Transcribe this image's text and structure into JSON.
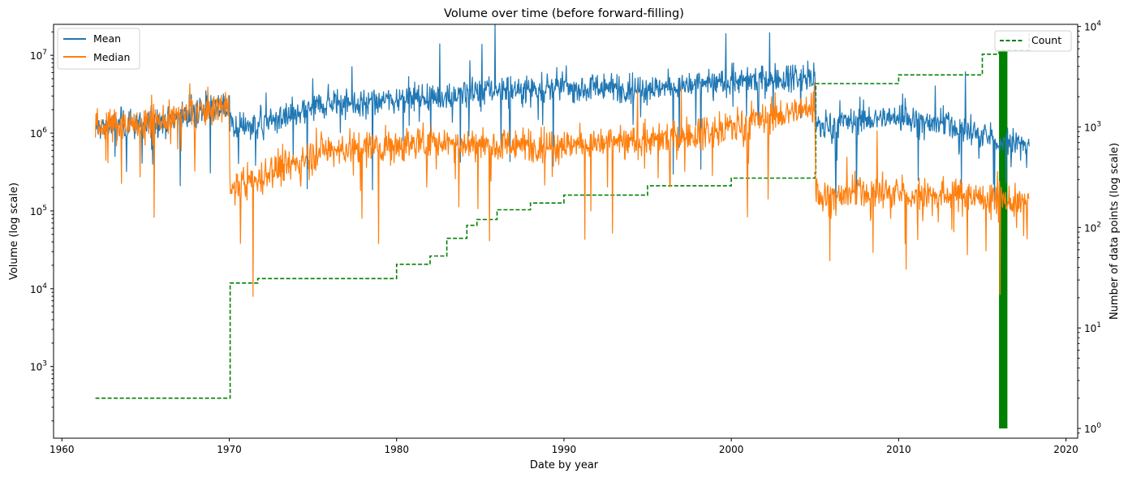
{
  "chart_data": {
    "type": "line",
    "title": "Volume over time (before forward-filling)",
    "xlabel": "Date by year",
    "ylabel": "Volume (log scale)",
    "y2label": "Number of data points (log scale)",
    "xlim": [
      1959.5,
      2020.7
    ],
    "ylim": [
      120,
      25000000
    ],
    "y2lim": [
      0.8,
      10500
    ],
    "yscale": "log",
    "y2scale": "log",
    "x_ticks": [
      1960,
      1970,
      1980,
      1990,
      2000,
      2010,
      2020
    ],
    "x_tick_labels": [
      "1960",
      "1970",
      "1980",
      "1990",
      "2000",
      "2010",
      "2020"
    ],
    "y_ticks": [
      1000,
      10000,
      100000,
      1000000,
      10000000
    ],
    "y_tick_labels": [
      [
        "10",
        "3"
      ],
      [
        "10",
        "4"
      ],
      [
        "10",
        "5"
      ],
      [
        "10",
        "6"
      ],
      [
        "10",
        "7"
      ]
    ],
    "y2_ticks": [
      1,
      10,
      100,
      1000,
      10000
    ],
    "y2_tick_labels": [
      [
        "10",
        "0"
      ],
      [
        "10",
        "1"
      ],
      [
        "10",
        "2"
      ],
      [
        "10",
        "3"
      ],
      [
        "10",
        "4"
      ]
    ],
    "legend_left": {
      "placement": "upper-left",
      "entries": [
        "Mean",
        "Median"
      ]
    },
    "legend_right": {
      "placement": "upper-right",
      "entries": [
        "Count"
      ]
    },
    "colors": {
      "mean": "#1f77b4",
      "median": "#ff7f0e",
      "count": "#008000"
    },
    "series": [
      {
        "name": "Mean",
        "axis": "left",
        "x": [
          1962,
          1965,
          1968,
          1970,
          1970.05,
          1973,
          1976,
          1978,
          1980,
          1983,
          1986,
          1990,
          1995,
          2000,
          2005,
          2005.05,
          2008,
          2010,
          2013,
          2016,
          2017.8
        ],
        "y": [
          1200000,
          1300000,
          1800000,
          2300000,
          1200000,
          1500000,
          2500000,
          2400000,
          2800000,
          3000000,
          3600000,
          3900000,
          3800000,
          4600000,
          5600000,
          1200000,
          1500000,
          1600000,
          1300000,
          800000,
          750000
        ]
      },
      {
        "name": "Median",
        "axis": "left",
        "x": [
          1962,
          1965,
          1968,
          1970,
          1970.05,
          1973,
          1976,
          1978,
          1980,
          1983,
          1986,
          1990,
          1995,
          2000,
          2005,
          2005.05,
          2008,
          2010,
          2013,
          2016,
          2017.8
        ],
        "y": [
          1200000,
          1300000,
          1800000,
          2300000,
          200000,
          350000,
          600000,
          650000,
          700000,
          800000,
          700000,
          720000,
          800000,
          1200000,
          2200000,
          150000,
          180000,
          170000,
          160000,
          140000,
          120000
        ]
      },
      {
        "name": "Count",
        "axis": "right",
        "x": [
          1962,
          1970,
          1970.05,
          1971.7,
          1977,
          1980,
          1982,
          1983,
          1984.2,
          1984.8,
          1986,
          1988,
          1990,
          1995,
          2000,
          2005,
          2005.05,
          2010,
          2015,
          2016,
          2017.8
        ],
        "y": [
          2,
          2,
          28,
          31,
          31,
          43,
          52,
          78,
          105,
          120,
          150,
          175,
          210,
          260,
          310,
          350,
          2700,
          3300,
          5300,
          5800,
          8500
        ]
      }
    ],
    "annotations": []
  }
}
